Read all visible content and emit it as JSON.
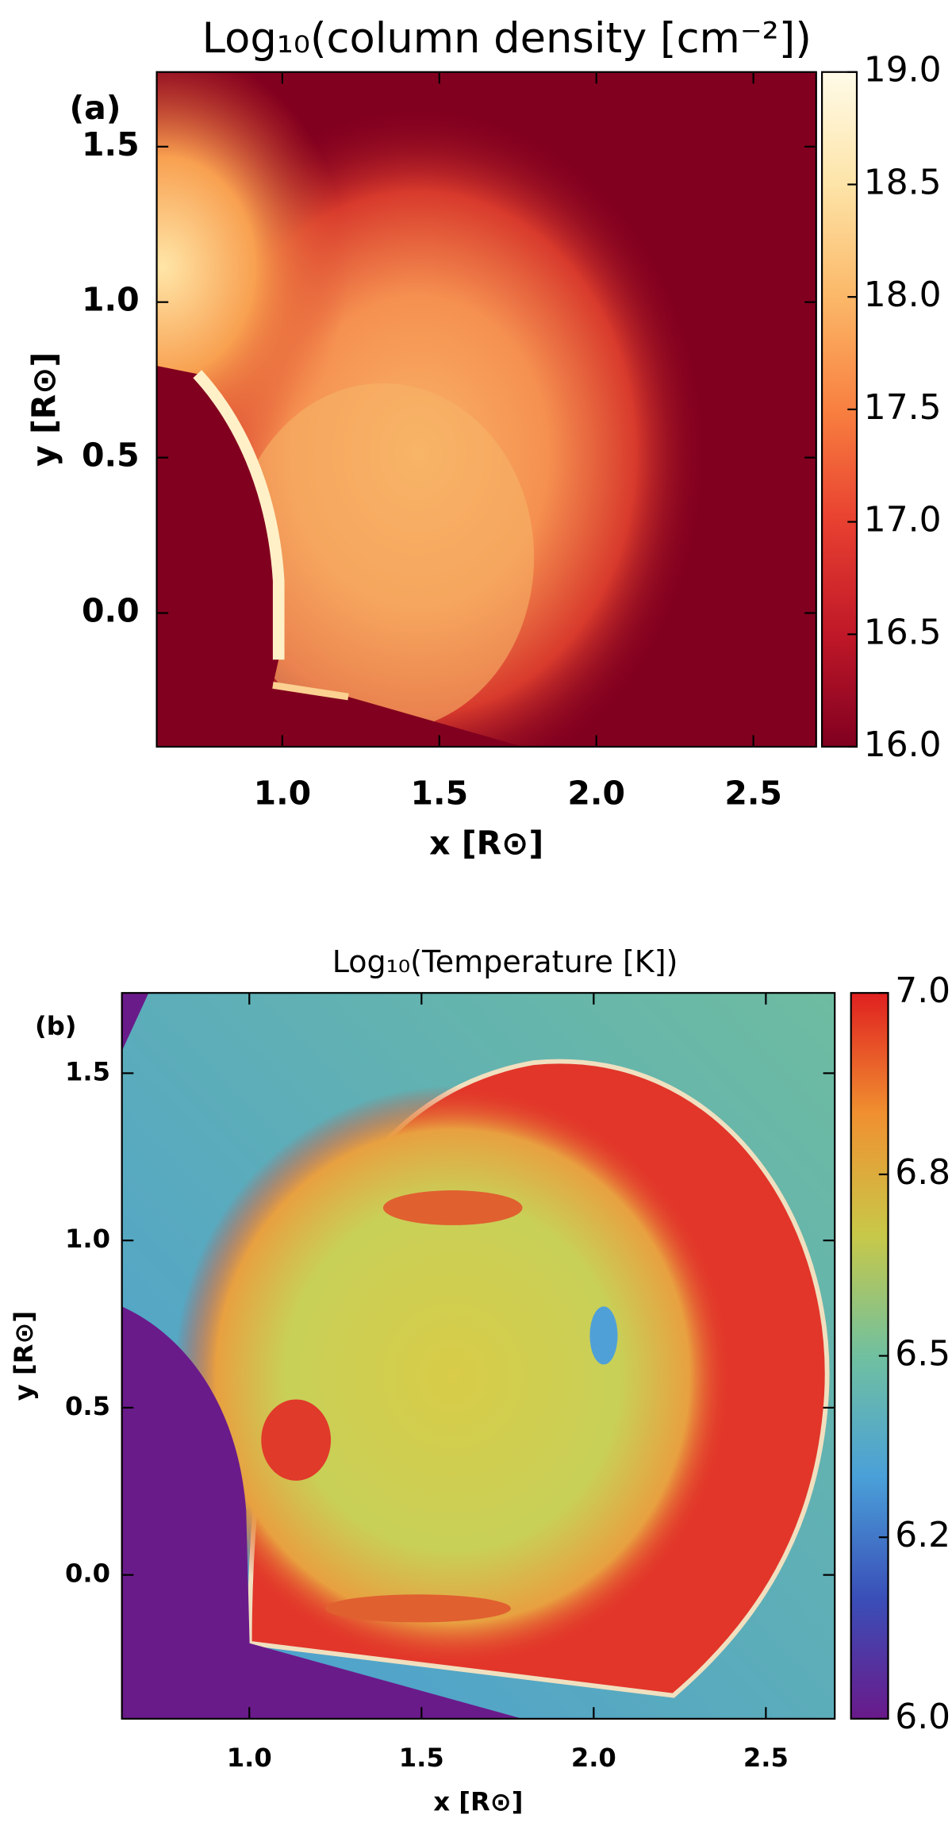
{
  "chart_data": [
    {
      "type": "heatmap",
      "panel_label": "(a)",
      "title": "Log₁₀(column density [cm⁻²])",
      "xlabel": "x [R⊙]",
      "ylabel": "y [R⊙]",
      "xlim": [
        0.6,
        2.7
      ],
      "ylim": [
        -0.43,
        1.74
      ],
      "xticks": [
        {
          "value": 1,
          "label": "1.0"
        },
        1.5,
        {
          "value": 2,
          "label": "2.0"
        },
        2.5
      ],
      "yticks": [
        {
          "value": 0,
          "label": "0.0"
        },
        0.5,
        {
          "value": 1,
          "label": "1.0"
        },
        1.5
      ],
      "colorbar": {
        "clim": [
          16,
          19
        ],
        "ticks": [
          {
            "value": 16,
            "label": "16.0"
          },
          16.5,
          {
            "value": 17,
            "label": "17.0"
          },
          17.5,
          {
            "value": 18,
            "label": "18.0"
          },
          18.5,
          {
            "value": 19,
            "label": "19.0"
          }
        ],
        "colormap": [
          "#800020",
          "#c01828",
          "#e84030",
          "#f88040",
          "#fbb868",
          "#fde4a8",
          "#fffbe8"
        ]
      }
    },
    {
      "type": "heatmap",
      "panel_label": "(b)",
      "title": "Log₁₀(Temperature [K])",
      "xlabel": "x [R⊙]",
      "ylabel": "y [R⊙]",
      "xlim": [
        0.63,
        2.7
      ],
      "ylim": [
        -0.43,
        1.74
      ],
      "xticks": [
        {
          "value": 1,
          "label": "1.0"
        },
        1.5,
        {
          "value": 2,
          "label": "2.0"
        },
        2.5
      ],
      "yticks": [
        {
          "value": 0,
          "label": "0.0"
        },
        0.5,
        {
          "value": 1,
          "label": "1.0"
        },
        1.5
      ],
      "colorbar": {
        "clim": [
          6,
          7
        ],
        "ticks": [
          {
            "value": 6,
            "label": "6.0"
          },
          {
            "value": 6.25,
            "label": "6.2"
          },
          6.5,
          {
            "value": 6.75,
            "label": "6.8"
          },
          {
            "value": 7,
            "label": "7.0"
          }
        ],
        "colormap": [
          "#6a1a8a",
          "#3a4fb8",
          "#4aa0d8",
          "#70c0a0",
          "#c8c848",
          "#f09030",
          "#e02020"
        ]
      }
    }
  ]
}
